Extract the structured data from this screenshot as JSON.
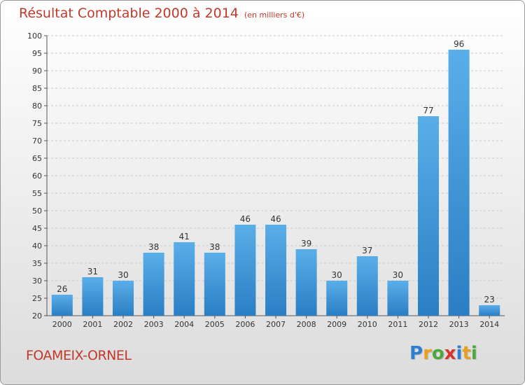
{
  "title": "Résultat Comptable 2000 à 2014",
  "unit_note": "(en milliers d'€)",
  "city": "FOAMEIX-ORNEL",
  "logo": {
    "letters": [
      "P",
      "r",
      "o",
      "x",
      "i",
      "t",
      "i"
    ],
    "colors": [
      "#2e7fd0",
      "#e8a020",
      "#4aa83c",
      "#d9342b",
      "#2e7fd0",
      "#e8a020",
      "#4aa83c"
    ]
  },
  "colors": {
    "bar_top": "#5aaee8",
    "bar_bottom": "#2a7ec4",
    "title": "#c0392b"
  },
  "chart_data": {
    "type": "bar",
    "categories": [
      "2000",
      "2001",
      "2002",
      "2003",
      "2004",
      "2005",
      "2006",
      "2007",
      "2008",
      "2009",
      "2010",
      "2011",
      "2012",
      "2013",
      "2014"
    ],
    "values": [
      26,
      31,
      30,
      38,
      41,
      38,
      46,
      46,
      39,
      30,
      37,
      30,
      77,
      96,
      23
    ],
    "ylim": [
      20,
      100
    ],
    "yticks": [
      20,
      25,
      30,
      35,
      40,
      45,
      50,
      55,
      60,
      65,
      70,
      75,
      80,
      85,
      90,
      95,
      100
    ],
    "grid": true
  }
}
